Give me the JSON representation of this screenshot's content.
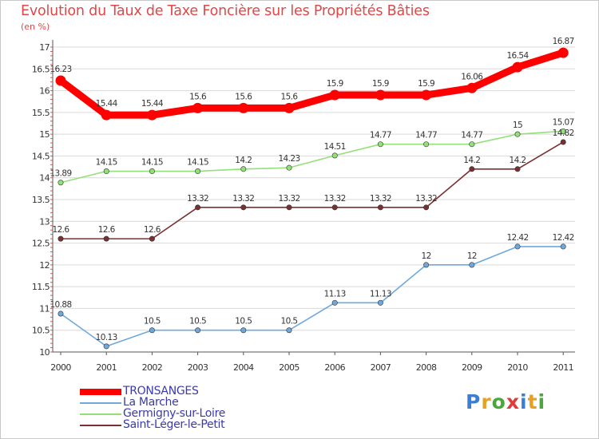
{
  "chart_data": {
    "type": "line",
    "title": "Evolution du Taux de Taxe Foncière sur les Propriétés Bâties",
    "unit_label": "(en %)",
    "xlabel": "",
    "ylabel": "",
    "x": [
      "2000",
      "2001",
      "2002",
      "2003",
      "2004",
      "2005",
      "2006",
      "2007",
      "2008",
      "2009",
      "2010",
      "2011"
    ],
    "ylim": [
      10,
      17
    ],
    "yticks": [
      "10",
      "10.5",
      "11",
      "11.5",
      "12",
      "12.5",
      "13",
      "13.5",
      "14",
      "14.5",
      "15",
      "15.5",
      "16",
      "16.5",
      "17"
    ],
    "grid": "horizontal",
    "legend_position": "bottom-left",
    "series": [
      {
        "name": "TRONSANGES",
        "color": "#ff0000",
        "values": [
          16.23,
          15.44,
          15.44,
          15.6,
          15.6,
          15.6,
          15.9,
          15.9,
          15.9,
          16.06,
          16.54,
          16.87
        ],
        "labels": [
          "16.23",
          "15.44",
          "15.44",
          "15.6",
          "15.6",
          "15.6",
          "15.9",
          "15.9",
          "15.9",
          "16.06",
          "16.54",
          "16.87"
        ]
      },
      {
        "name": "La Marche",
        "color": "#6fa8dc",
        "values": [
          10.88,
          10.13,
          10.5,
          10.5,
          10.5,
          10.5,
          11.13,
          11.13,
          12,
          12,
          12.42,
          12.42
        ],
        "labels": [
          "10.88",
          "10.13",
          "10.5",
          "10.5",
          "10.5",
          "10.5",
          "11.13",
          "11.13",
          "12",
          "12",
          "12.42",
          "12.42"
        ]
      },
      {
        "name": "Germigny-sur-Loire",
        "color": "#93e07a",
        "values": [
          13.89,
          14.15,
          14.15,
          14.15,
          14.2,
          14.23,
          14.51,
          14.77,
          14.77,
          14.77,
          15,
          15.07
        ],
        "labels": [
          "13.89",
          "14.15",
          "14.15",
          "14.15",
          "14.2",
          "14.23",
          "14.51",
          "14.77",
          "14.77",
          "14.77",
          "15",
          "15.07"
        ]
      },
      {
        "name": "Saint-Léger-le-Petit",
        "color": "#7a3030",
        "values": [
          12.6,
          12.6,
          12.6,
          13.32,
          13.32,
          13.32,
          13.32,
          13.32,
          13.32,
          14.2,
          14.2,
          14.82
        ],
        "labels": [
          "12.6",
          "12.6",
          "12.6",
          "13.32",
          "13.32",
          "13.32",
          "13.32",
          "13.32",
          "13.32",
          "14.2",
          "14.2",
          "14.82"
        ]
      }
    ]
  },
  "brand": {
    "letters": [
      "P",
      "r",
      "o",
      "x",
      "i",
      "t",
      "i"
    ],
    "colors": [
      "#3a7fd5",
      "#e8a020",
      "#4aa83a",
      "#e03a3a",
      "#3a7fd5",
      "#e8a020",
      "#4aa83a"
    ]
  }
}
